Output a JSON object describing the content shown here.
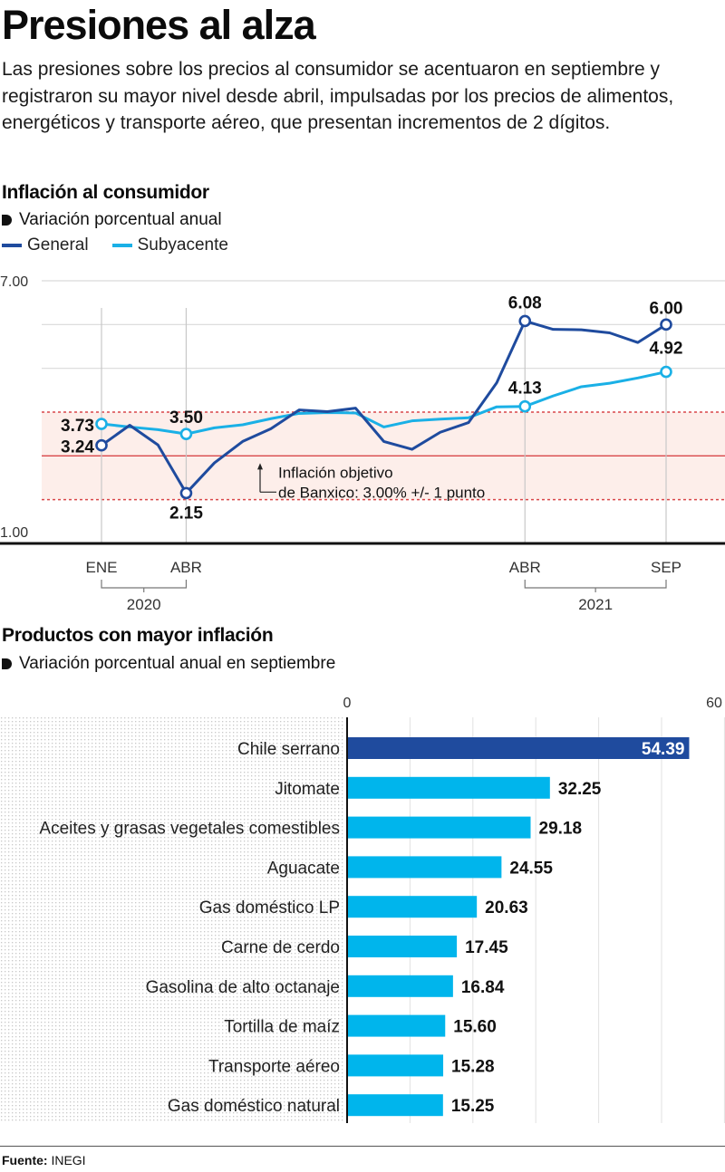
{
  "header": {
    "title": "Presiones al alza",
    "intro": "Las presiones sobre los precios al consumidor se acentuaron en septiembre y registraron su mayor nivel desde abril, impulsadas por los precios de alimentos, energéticos y transporte aéreo, que presentan incrementos de 2 dígitos."
  },
  "colors": {
    "general": "#1f4b9e",
    "subyacente": "#1ab0e6",
    "bar_highlight": "#1f4b9e",
    "bar_default": "#00b5ec",
    "target_band": "#fdeeea",
    "target_line": "#d9474a"
  },
  "chart_data": [
    {
      "type": "line",
      "title": "Inflación al consumidor",
      "subtitle": "Variación porcentual anual",
      "legend": [
        "General",
        "Subyacente"
      ],
      "legend_position": "top-left",
      "ylim": [
        1.0,
        7.0
      ],
      "yticks": [
        "7.00",
        "1.00"
      ],
      "grid": true,
      "x": [
        "2020-01",
        "2020-02",
        "2020-03",
        "2020-04",
        "2020-05",
        "2020-06",
        "2020-07",
        "2020-08",
        "2020-09",
        "2020-10",
        "2020-11",
        "2020-12",
        "2021-01",
        "2021-02",
        "2021-03",
        "2021-04",
        "2021-05",
        "2021-06",
        "2021-07",
        "2021-08",
        "2021-09"
      ],
      "xtick_labels": [
        {
          "index": 0,
          "label": "ENE"
        },
        {
          "index": 3,
          "label": "ABR"
        },
        {
          "index": 15,
          "label": "ABR"
        },
        {
          "index": 20,
          "label": "SEP"
        }
      ],
      "year_groups": [
        {
          "label": "2020",
          "from": 0,
          "to": 3
        },
        {
          "label": "2021",
          "from": 15,
          "to": 20
        }
      ],
      "series": [
        {
          "name": "General",
          "values": [
            3.24,
            3.7,
            3.25,
            2.15,
            2.84,
            3.33,
            3.62,
            4.05,
            4.01,
            4.09,
            3.33,
            3.15,
            3.54,
            3.76,
            4.67,
            6.08,
            5.89,
            5.88,
            5.81,
            5.59,
            6.0
          ],
          "labeled_points": [
            {
              "index": 0,
              "label": "3.24"
            },
            {
              "index": 3,
              "label": "2.15"
            },
            {
              "index": 15,
              "label": "6.08"
            },
            {
              "index": 20,
              "label": "6.00"
            }
          ]
        },
        {
          "name": "Subyacente",
          "values": [
            3.73,
            3.66,
            3.6,
            3.5,
            3.64,
            3.71,
            3.85,
            3.97,
            3.99,
            3.98,
            3.66,
            3.8,
            3.84,
            3.87,
            4.12,
            4.13,
            4.37,
            4.58,
            4.66,
            4.78,
            4.92
          ],
          "labeled_points": [
            {
              "index": 0,
              "label": "3.73"
            },
            {
              "index": 3,
              "label": "3.50"
            },
            {
              "index": 15,
              "label": "4.13"
            },
            {
              "index": 20,
              "label": "4.92"
            }
          ]
        }
      ],
      "target": {
        "center": 3.0,
        "lower": 2.0,
        "upper": 4.0,
        "annotation_line1": "Inflación objetivo",
        "annotation_line2": "de Banxico: 3.00% +/- 1 punto"
      }
    },
    {
      "type": "bar",
      "orientation": "horizontal",
      "title": "Productos con mayor inflación",
      "subtitle": "Variación porcentual anual en septiembre",
      "xlim": [
        0,
        60
      ],
      "xticks": [
        "0",
        "60"
      ],
      "grid": true,
      "categories": [
        "Chile serrano",
        "Jitomate",
        "Aceites y grasas vegetales comestibles",
        "Aguacate",
        "Gas doméstico LP",
        "Carne de cerdo",
        "Gasolina de alto octanaje",
        "Tortilla de maíz",
        "Transporte aéreo",
        "Gas doméstico natural"
      ],
      "values": [
        54.39,
        32.25,
        29.18,
        24.55,
        20.63,
        17.45,
        16.84,
        15.6,
        15.28,
        15.25
      ],
      "value_labels": [
        "54.39",
        "32.25",
        "29.18",
        "24.55",
        "20.63",
        "17.45",
        "16.84",
        "15.60",
        "15.28",
        "15.25"
      ],
      "highlight_index": 0
    }
  ],
  "footer": {
    "source_label": "Fuente:",
    "source_value": "INEGI"
  }
}
